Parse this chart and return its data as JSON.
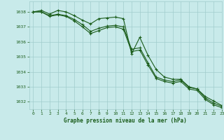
{
  "bg_color": "#c8eaea",
  "grid_color": "#a0cccc",
  "line_color": "#1a5c1a",
  "xlabel": "Graphe pression niveau de la mer (hPa)",
  "xlim": [
    -0.5,
    23
  ],
  "ylim": [
    1031.5,
    1038.7
  ],
  "yticks": [
    1032,
    1033,
    1034,
    1035,
    1036,
    1037,
    1038
  ],
  "xticks": [
    0,
    1,
    2,
    3,
    4,
    5,
    6,
    7,
    8,
    9,
    10,
    11,
    12,
    13,
    14,
    15,
    16,
    17,
    18,
    19,
    20,
    21,
    22,
    23
  ],
  "series": [
    [
      1038.0,
      1038.1,
      1037.85,
      1038.1,
      1038.0,
      1037.75,
      1037.45,
      1037.2,
      1037.55,
      1037.6,
      1037.65,
      1037.55,
      1035.2,
      1036.3,
      1035.1,
      1034.15,
      1033.65,
      1033.5,
      1033.5,
      1033.0,
      1032.85,
      1032.35,
      1032.05,
      1031.75
    ],
    [
      1038.0,
      1038.0,
      1037.75,
      1037.85,
      1037.75,
      1037.5,
      1037.15,
      1036.7,
      1036.9,
      1037.05,
      1037.1,
      1037.0,
      1035.5,
      1035.6,
      1034.6,
      1033.65,
      1033.45,
      1033.35,
      1033.45,
      1032.95,
      1032.85,
      1032.25,
      1031.9,
      1031.7
    ],
    [
      1038.0,
      1038.0,
      1037.7,
      1037.8,
      1037.7,
      1037.4,
      1037.0,
      1036.55,
      1036.75,
      1036.95,
      1037.0,
      1036.85,
      1035.35,
      1035.45,
      1034.45,
      1033.55,
      1033.35,
      1033.25,
      1033.35,
      1032.85,
      1032.75,
      1032.15,
      1031.8,
      1031.6
    ]
  ]
}
